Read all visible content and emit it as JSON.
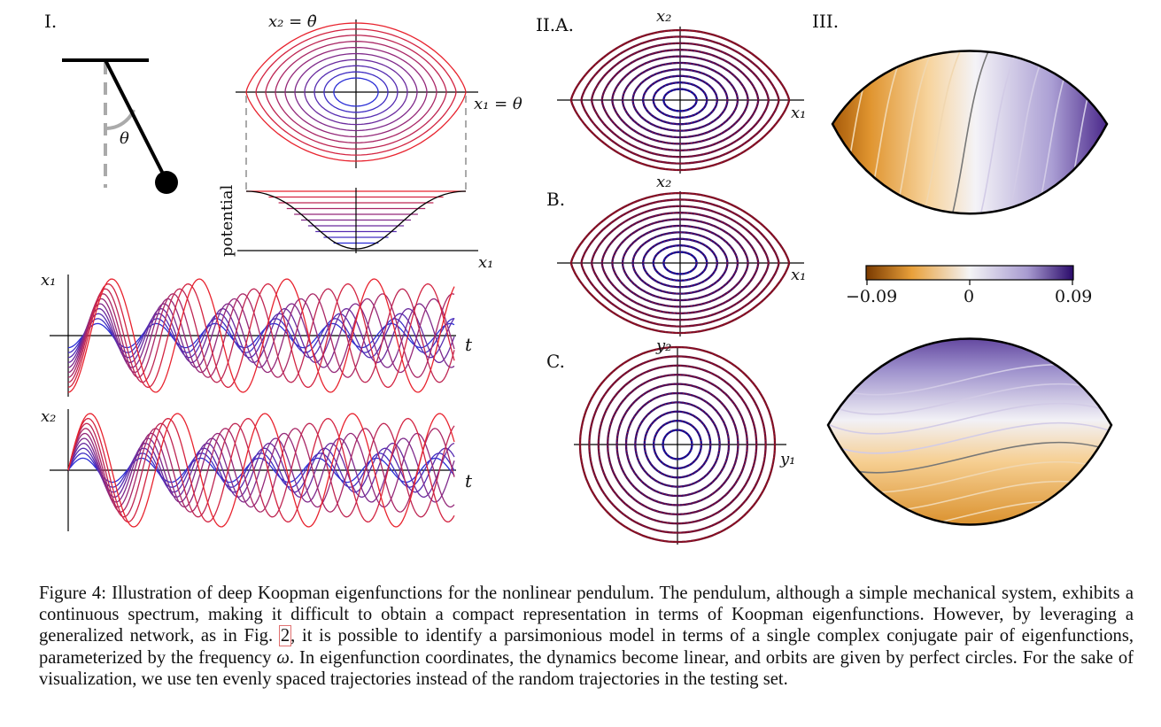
{
  "figure": {
    "panel_labels": {
      "p1": "I.",
      "p2a": "II.A.",
      "p2b": "B.",
      "p2c": "C.",
      "p3": "III."
    },
    "axes": {
      "theta": "θ",
      "phase_y": "x₂ = θ̇",
      "phase_x": "x₁ = θ",
      "potential": "potential",
      "pot_x": "x₁",
      "ts_x1": "x₁",
      "ts_x2": "x₂",
      "t": "t",
      "x1": "x₁",
      "x2": "x₂",
      "y1": "y₁",
      "y2": "y₂"
    },
    "colorbar": {
      "min": "−0.09",
      "mid": "0",
      "max": "0.09"
    },
    "colors": {
      "trajectory_low": "#2b2fd6",
      "trajectory_high": "#e8232e",
      "orange": "#d9870e",
      "purple": "#3a1a80",
      "data_points": "#cc1111"
    }
  },
  "caption": {
    "before": "Figure 4: Illustration of deep Koopman eigenfunctions for the nonlinear pendulum. The pendulum, although a simple mechanical system, exhibits a continuous spectrum, making it difficult to obtain a compact representation in terms of Koopman eigenfunctions. However, by leveraging a generalized network, as in Fig. ",
    "ref": "2",
    "after_ref": ", it is possible to identify a parsimonious model in terms of a single complex conjugate pair of eigenfunctions, parameterized by the frequency ",
    "omega": "ω",
    "end": ". In eigenfunction coordinates, the dynamics become linear, and orbits are given by perfect circles. For the sake of visualization, we use ten evenly spaced trajectories instead of the random trajectories in the testing set."
  }
}
